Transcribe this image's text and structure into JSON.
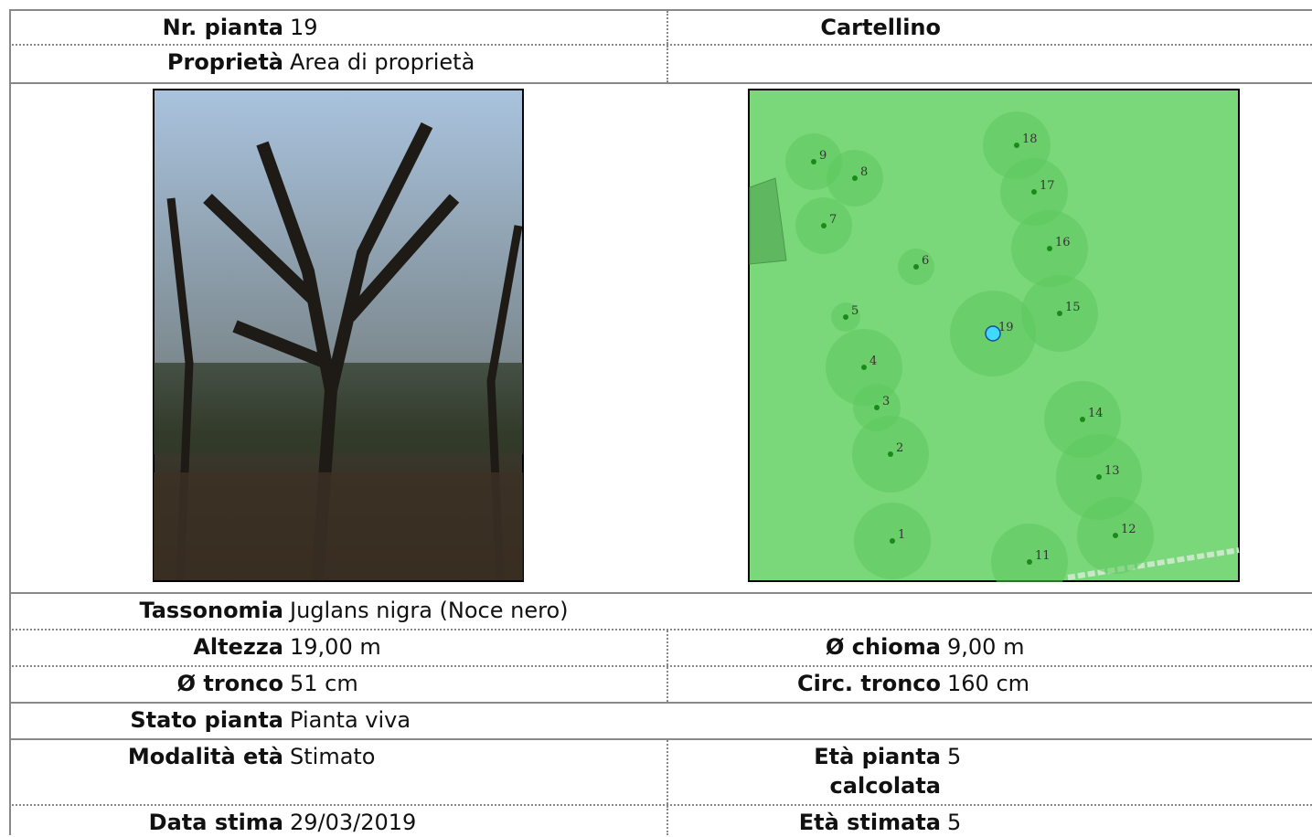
{
  "rows": [
    {
      "left": {
        "label": "Nr. pianta",
        "value": "19"
      },
      "right": {
        "label": "Cartellino"
      }
    },
    {
      "left": {
        "label": "Proprietà",
        "value": "Area di proprietà"
      }
    },
    {
      "left": {
        "label": "Tassonomia",
        "value": "Juglans nigra (Noce nero)"
      }
    },
    {
      "left": {
        "label": "Altezza",
        "value": "19,00 m"
      },
      "right": {
        "label": "Ø chioma",
        "value": "9,00 m"
      }
    },
    {
      "left": {
        "label": "Ø tronco",
        "value": "51 cm"
      },
      "right": {
        "label": "Circ. tronco",
        "value": "160 cm"
      }
    },
    {
      "left": {
        "label": "Stato pianta",
        "value": "Pianta viva"
      }
    },
    {
      "left": {
        "label": "Modalità età",
        "value": "Stimato"
      },
      "right": {
        "label": "Età pianta calcolata",
        "value": "5"
      }
    },
    {
      "left": {
        "label": "Data stima",
        "value": "29/03/2019"
      },
      "right": {
        "label": "Età stimata",
        "value": "5"
      }
    }
  ],
  "map": {
    "trees": [
      "1",
      "2",
      "3",
      "4",
      "5",
      "6",
      "7",
      "8",
      "9",
      "11",
      "12",
      "13",
      "14",
      "15",
      "16",
      "17",
      "18",
      "19"
    ]
  }
}
